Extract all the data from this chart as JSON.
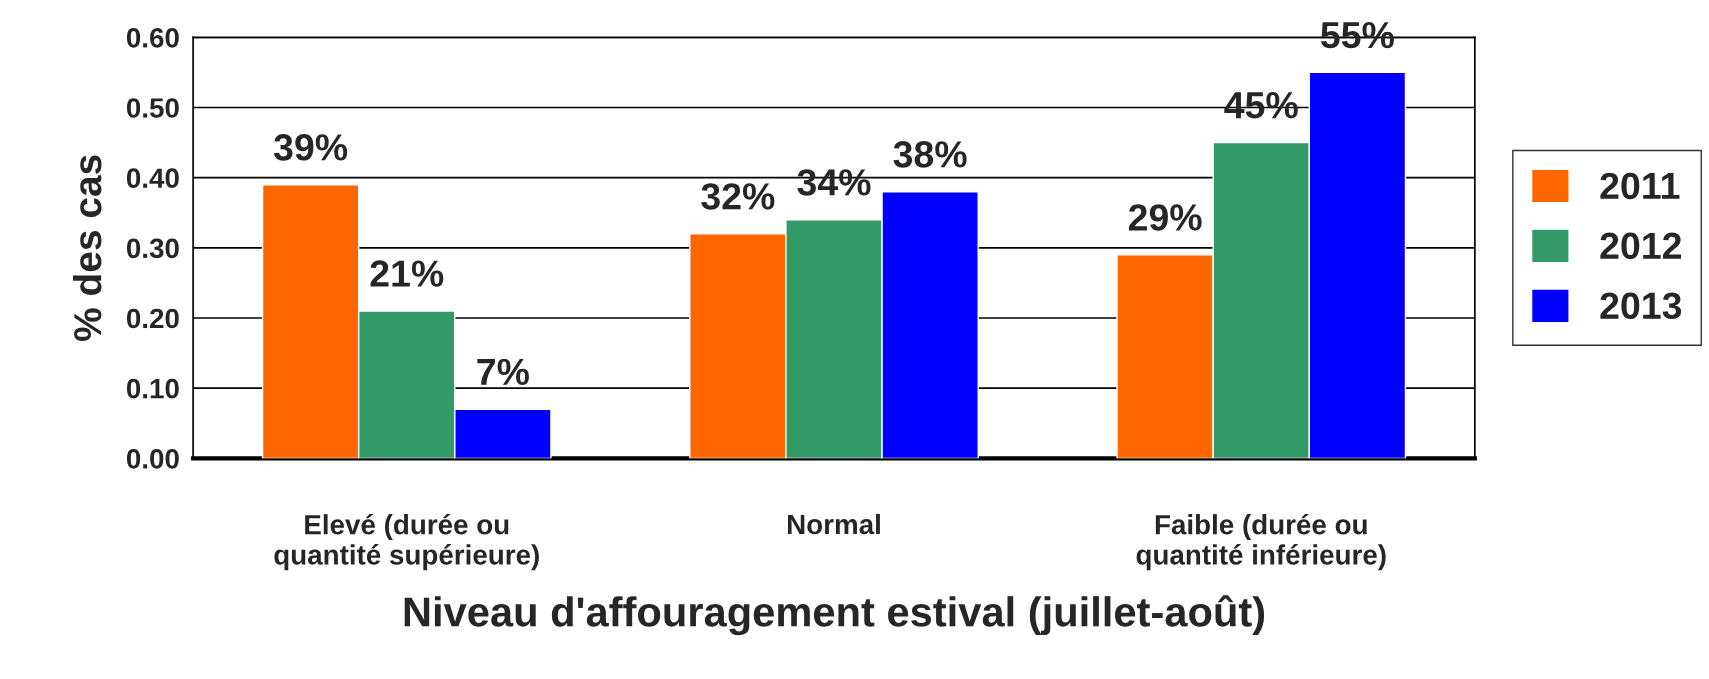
{
  "chart_data": {
    "type": "bar",
    "xlabel": "Niveau d'affouragement estival (juillet-août)",
    "ylabel": "% des cas",
    "categories": [
      "Elevé (durée ou\nquantité supérieure)",
      "Normal",
      "Faible (durée ou\nquantité inférieure)"
    ],
    "series": [
      {
        "name": "2011",
        "color": "#ff6600",
        "values": [
          0.39,
          0.32,
          0.29
        ],
        "value_labels": [
          "39%",
          "32%",
          "29%"
        ]
      },
      {
        "name": "2012",
        "color": "#339966",
        "values": [
          0.21,
          0.34,
          0.45
        ],
        "value_labels": [
          "21%",
          "34%",
          "45%"
        ]
      },
      {
        "name": "2013",
        "color": "#0000ff",
        "values": [
          0.07,
          0.38,
          0.55
        ],
        "value_labels": [
          "7%",
          "38%",
          "55%"
        ]
      }
    ],
    "ylim": [
      0,
      0.6
    ],
    "yticks": [
      {
        "value": 0,
        "label": "0.00"
      },
      {
        "value": 0.1,
        "label": "0.10"
      },
      {
        "value": 0.2,
        "label": "0.20"
      },
      {
        "value": 0.3,
        "label": "0.30"
      },
      {
        "value": 0.4,
        "label": "0.40"
      },
      {
        "value": 0.5,
        "label": "0.50"
      },
      {
        "value": 0.6,
        "label": "0.60"
      }
    ],
    "grid": "y",
    "legend": "right"
  }
}
